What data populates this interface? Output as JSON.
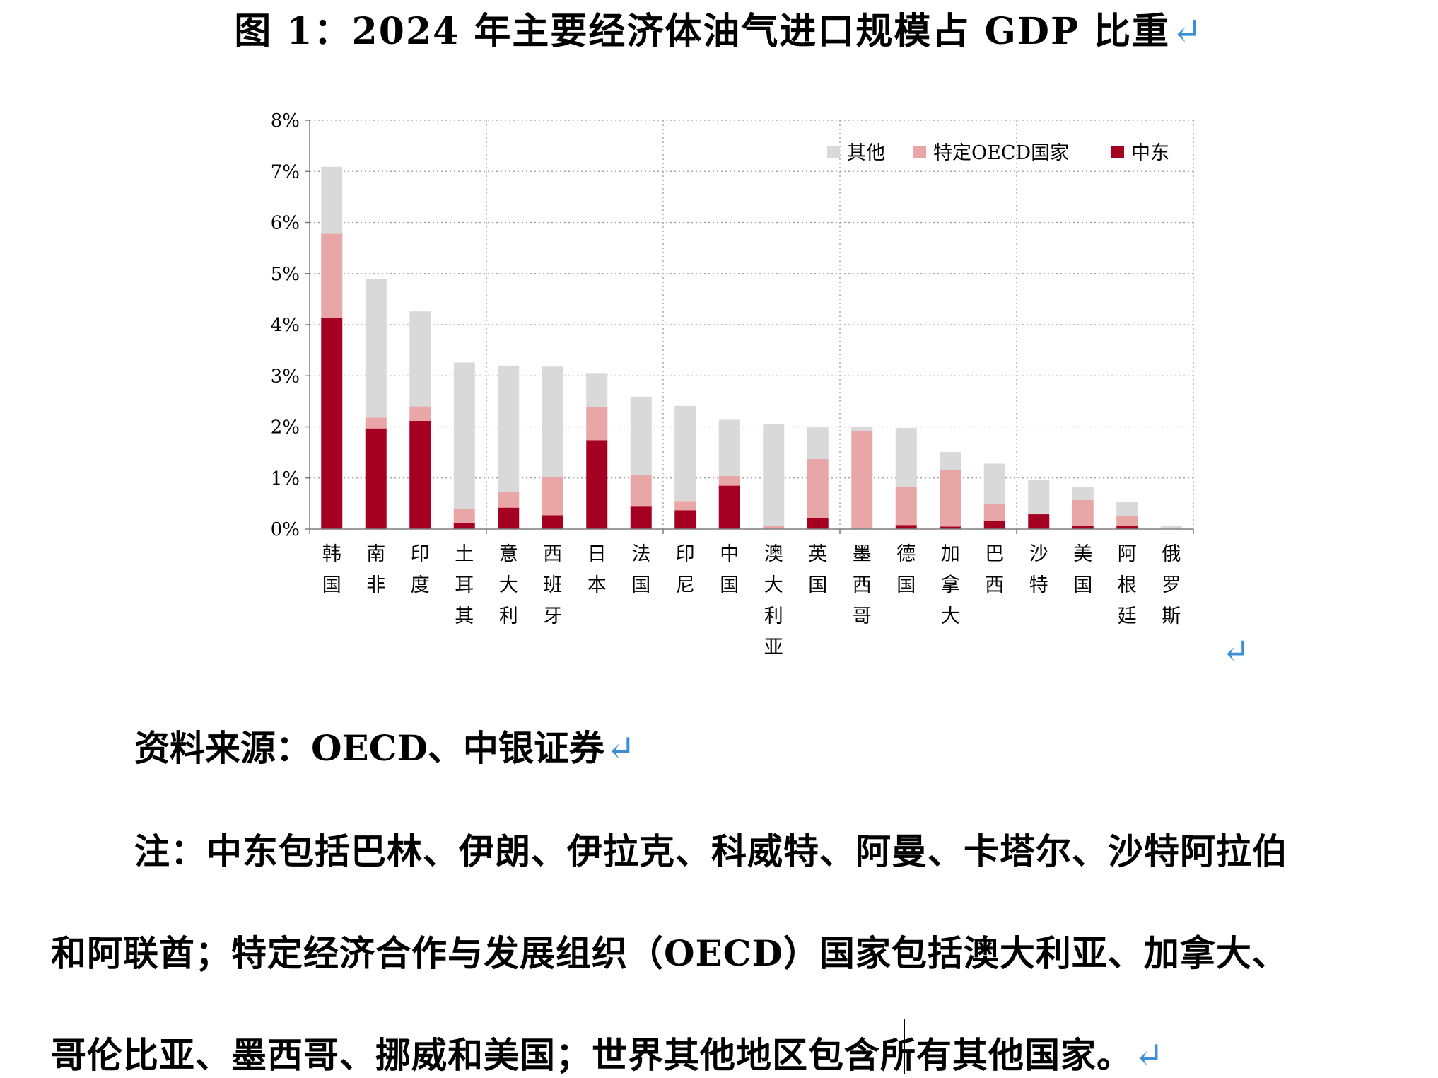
{
  "figure": {
    "title": "图 1：2024 年主要经济体油气进口规模占 GDP 比重"
  },
  "chart_data": {
    "type": "bar",
    "stacked": true,
    "categories": [
      "韩国",
      "南非",
      "印度",
      "土耳其",
      "意大利",
      "西班牙",
      "日本",
      "法国",
      "印尼",
      "中国",
      "澳大利亚",
      "英国",
      "墨西哥",
      "德国",
      "加拿大",
      "巴西",
      "沙特",
      "美国",
      "阿根廷",
      "俄罗斯"
    ],
    "series": [
      {
        "name": "中东",
        "color": "#a50021",
        "values": [
          4.13,
          1.97,
          2.12,
          0.12,
          0.42,
          0.27,
          1.74,
          0.44,
          0.37,
          0.85,
          0.0,
          0.22,
          0.0,
          0.08,
          0.05,
          0.16,
          0.29,
          0.07,
          0.06,
          0.0
        ]
      },
      {
        "name": "特定OECD国家",
        "color": "#e8a6a6",
        "values": [
          1.65,
          0.21,
          0.28,
          0.27,
          0.3,
          0.75,
          0.65,
          0.62,
          0.18,
          0.19,
          0.07,
          1.15,
          1.91,
          0.74,
          1.11,
          0.33,
          0.0,
          0.5,
          0.2,
          0.0
        ]
      },
      {
        "name": "其他",
        "color": "#d9d9d9",
        "values": [
          1.31,
          2.72,
          1.86,
          2.87,
          2.48,
          2.16,
          0.65,
          1.53,
          1.86,
          1.1,
          1.99,
          0.62,
          0.09,
          1.16,
          0.35,
          0.79,
          0.67,
          0.26,
          0.27,
          0.07
        ]
      }
    ],
    "ylim": [
      0,
      8
    ],
    "yticks": [
      0,
      1,
      2,
      3,
      4,
      5,
      6,
      7,
      8
    ],
    "ytick_labels": [
      "0%",
      "1%",
      "2%",
      "3%",
      "4%",
      "5%",
      "6%",
      "7%",
      "8%"
    ],
    "legend": {
      "position": "top-right",
      "entries": [
        "其他",
        "特定OECD国家",
        "中东"
      ]
    },
    "grid": {
      "horizontal": true,
      "vertical_every_n_categories": 4,
      "style": "dotted"
    }
  },
  "source": "资料来源：OECD、中银证券",
  "notes": [
    "注：中东包括巴林、伊朗、伊拉克、科威特、阿曼、卡塔尔、沙特阿拉伯",
    "和阿联酋；特定经济合作与发展组织（OECD）国家包括澳大利亚、加拿大、",
    "哥伦比亚、墨西哥、挪威和美国；世界其他地区包含所有其他国家。"
  ],
  "marks": {
    "return": "↵"
  }
}
